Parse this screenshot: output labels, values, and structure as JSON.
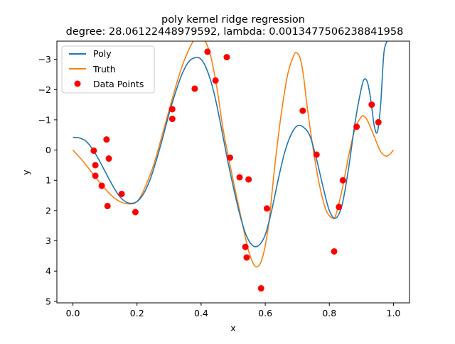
{
  "chart_data": {
    "type": "line",
    "title": "poly kernel ridge regression",
    "subtitle": "degree: 28.06122448979592, lambda: 0.0013477506238841958",
    "xlabel": "x",
    "ylabel": "y",
    "xlim": [
      -0.05,
      1.05
    ],
    "ylim": [
      5.05,
      -3.6
    ],
    "y_inverted": true,
    "grid": false,
    "legend_position": "upper-left",
    "x_ticks": [
      "0.0",
      "0.2",
      "0.4",
      "0.6",
      "0.8",
      "1.0"
    ],
    "y_ticks": [
      "−3",
      "−2",
      "−1",
      "0",
      "1",
      "2",
      "3",
      "4",
      "5"
    ],
    "x_tick_values": [
      0.0,
      0.2,
      0.4,
      0.6,
      0.8,
      1.0
    ],
    "y_tick_values": [
      -3,
      -2,
      -1,
      0,
      1,
      2,
      3,
      4,
      5
    ],
    "series": [
      {
        "name": "Poly",
        "type": "line",
        "color": "#1f77b4",
        "x": [
          0.0,
          0.02,
          0.04,
          0.06,
          0.08,
          0.1,
          0.12,
          0.14,
          0.16,
          0.18,
          0.2,
          0.22,
          0.24,
          0.26,
          0.28,
          0.3,
          0.32,
          0.34,
          0.36,
          0.38,
          0.4,
          0.42,
          0.44,
          0.46,
          0.48,
          0.5,
          0.52,
          0.54,
          0.56,
          0.58,
          0.6,
          0.62,
          0.64,
          0.66,
          0.68,
          0.7,
          0.72,
          0.74,
          0.76,
          0.78,
          0.8,
          0.82,
          0.84,
          0.86,
          0.88,
          0.9,
          0.91,
          0.92,
          0.93,
          0.94,
          0.95,
          0.96,
          0.97,
          0.98
        ],
        "y": [
          -0.42,
          -0.4,
          -0.3,
          -0.05,
          0.3,
          0.7,
          1.1,
          1.45,
          1.68,
          1.76,
          1.7,
          1.45,
          1.0,
          0.35,
          -0.4,
          -1.2,
          -1.9,
          -2.5,
          -2.9,
          -3.05,
          -3.0,
          -2.6,
          -1.9,
          -0.9,
          0.2,
          1.2,
          2.1,
          2.8,
          3.15,
          3.15,
          2.8,
          2.0,
          1.0,
          0.1,
          -0.5,
          -0.8,
          -0.75,
          -0.45,
          0.3,
          1.2,
          2.0,
          2.25,
          1.8,
          0.6,
          -0.9,
          -2.05,
          -2.35,
          -2.2,
          -1.6,
          -0.8,
          -0.6,
          -1.5,
          -3.2,
          -3.6
        ]
      },
      {
        "name": "Truth",
        "type": "line",
        "color": "#ff7f0e",
        "x": [
          0.0,
          0.03,
          0.06,
          0.09,
          0.12,
          0.15,
          0.18,
          0.2,
          0.22,
          0.25,
          0.28,
          0.31,
          0.34,
          0.37,
          0.39,
          0.41,
          0.43,
          0.45,
          0.47,
          0.5,
          0.53,
          0.55,
          0.57,
          0.59,
          0.61,
          0.63,
          0.65,
          0.67,
          0.69,
          0.7,
          0.71,
          0.72,
          0.73,
          0.75,
          0.77,
          0.79,
          0.81,
          0.82,
          0.84,
          0.86,
          0.88,
          0.9,
          0.91,
          0.92,
          0.94,
          0.96,
          0.98,
          1.0
        ],
        "y": [
          0.0,
          0.35,
          0.75,
          1.15,
          1.5,
          1.72,
          1.78,
          1.7,
          1.35,
          0.55,
          -0.55,
          -1.7,
          -2.75,
          -3.5,
          -3.75,
          -3.65,
          -3.1,
          -2.0,
          -0.6,
          1.0,
          2.5,
          3.4,
          3.85,
          3.6,
          2.5,
          0.5,
          -1.2,
          -2.5,
          -3.15,
          -3.2,
          -3.0,
          -2.4,
          -1.5,
          0.0,
          1.2,
          2.0,
          2.25,
          2.15,
          1.3,
          0.2,
          -0.7,
          -1.1,
          -1.1,
          -0.95,
          -0.45,
          0.05,
          0.2,
          0.0
        ]
      },
      {
        "name": "Data Points",
        "type": "scatter",
        "color": "#ff0000",
        "x": [
          0.065,
          0.07,
          0.07,
          0.09,
          0.105,
          0.108,
          0.112,
          0.152,
          0.195,
          0.31,
          0.31,
          0.38,
          0.42,
          0.445,
          0.48,
          0.49,
          0.52,
          0.538,
          0.542,
          0.548,
          0.587,
          0.605,
          0.717,
          0.76,
          0.815,
          0.83,
          0.842,
          0.885,
          0.932,
          0.953
        ],
        "y": [
          0.02,
          0.5,
          0.85,
          1.18,
          -0.35,
          1.85,
          0.28,
          1.45,
          2.05,
          -1.35,
          -1.03,
          -2.03,
          -3.25,
          -2.3,
          -3.07,
          0.25,
          0.9,
          3.2,
          3.55,
          0.97,
          4.57,
          1.93,
          -1.3,
          0.15,
          3.35,
          1.88,
          1.0,
          -0.77,
          -1.5,
          -0.92
        ]
      }
    ]
  }
}
